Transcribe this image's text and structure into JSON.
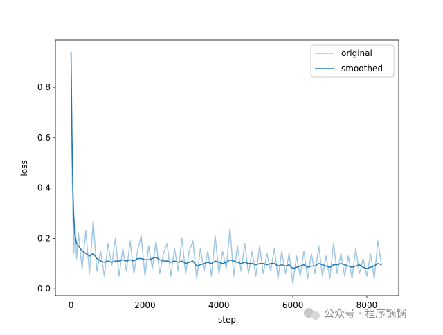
{
  "chart_data": {
    "type": "line",
    "xlabel": "step",
    "ylabel": "loss",
    "xlim": [
      -422,
      8862
    ],
    "ylim": [
      -0.027,
      0.987
    ],
    "xticks": [
      0,
      2000,
      4000,
      6000,
      8000
    ],
    "yticks": [
      {
        "value": 0,
        "label": "0.0"
      },
      {
        "value": 0.2,
        "label": "0.2"
      },
      {
        "value": 0.4,
        "label": "0.4"
      },
      {
        "value": 0.6,
        "label": "0.6"
      },
      {
        "value": 0.8,
        "label": "0.8"
      }
    ],
    "legend": "upper right",
    "x": [
      0,
      25,
      50,
      75,
      100,
      150,
      200,
      300,
      400,
      500,
      600,
      700,
      800,
      900,
      1000,
      1100,
      1200,
      1300,
      1400,
      1500,
      1600,
      1700,
      1800,
      1900,
      2000,
      2100,
      2200,
      2300,
      2400,
      2500,
      2600,
      2700,
      2800,
      2900,
      3000,
      3100,
      3200,
      3300,
      3400,
      3500,
      3600,
      3700,
      3800,
      3900,
      4000,
      4100,
      4200,
      4300,
      4400,
      4500,
      4600,
      4700,
      4800,
      4900,
      5000,
      5100,
      5200,
      5300,
      5400,
      5500,
      5600,
      5700,
      5800,
      5900,
      6000,
      6100,
      6200,
      6300,
      6400,
      6500,
      6600,
      6700,
      6800,
      6900,
      7000,
      7100,
      7200,
      7300,
      7400,
      7500,
      7600,
      7700,
      7800,
      7900,
      8000,
      8100,
      8200,
      8300,
      8400
    ],
    "series": [
      {
        "name": "original",
        "color": "#a1c7e0",
        "values": [
          0.94,
          0.52,
          0.3,
          0.14,
          0.28,
          0.12,
          0.22,
          0.08,
          0.23,
          0.06,
          0.27,
          0.07,
          0.15,
          0.05,
          0.18,
          0.09,
          0.2,
          0.05,
          0.16,
          0.07,
          0.19,
          0.06,
          0.15,
          0.21,
          0.05,
          0.17,
          0.08,
          0.19,
          0.06,
          0.14,
          0.18,
          0.05,
          0.16,
          0.07,
          0.2,
          0.06,
          0.15,
          0.19,
          0.04,
          0.16,
          0.07,
          0.15,
          0.05,
          0.21,
          0.06,
          0.15,
          0.08,
          0.24,
          0.05,
          0.17,
          0.07,
          0.18,
          0.06,
          0.15,
          0.05,
          0.17,
          0.06,
          0.14,
          0.07,
          0.16,
          0.04,
          0.15,
          0.06,
          0.14,
          0.02,
          0.13,
          0.05,
          0.15,
          0.04,
          0.14,
          0.06,
          0.17,
          0.05,
          0.13,
          0.04,
          0.18,
          0.06,
          0.14,
          0.05,
          0.13,
          0.04,
          0.16,
          0.06,
          0.12,
          0.05,
          0.14,
          0.04,
          0.19,
          0.09
        ]
      },
      {
        "name": "smoothed",
        "color": "#1f77b4",
        "values": [
          0.94,
          0.62,
          0.4,
          0.28,
          0.22,
          0.18,
          0.17,
          0.15,
          0.14,
          0.13,
          0.14,
          0.12,
          0.11,
          0.105,
          0.11,
          0.105,
          0.11,
          0.11,
          0.115,
          0.11,
          0.115,
          0.11,
          0.12,
          0.12,
          0.115,
          0.115,
          0.12,
          0.125,
          0.115,
          0.11,
          0.11,
          0.105,
          0.11,
          0.105,
          0.11,
          0.1,
          0.105,
          0.11,
          0.09,
          0.095,
          0.1,
          0.105,
          0.1,
          0.11,
          0.105,
          0.1,
          0.105,
          0.115,
          0.11,
          0.105,
          0.1,
          0.105,
          0.1,
          0.1,
          0.095,
          0.1,
          0.1,
          0.095,
          0.1,
          0.1,
          0.09,
          0.095,
          0.09,
          0.095,
          0.08,
          0.085,
          0.09,
          0.095,
          0.085,
          0.09,
          0.09,
          0.1,
          0.095,
          0.09,
          0.085,
          0.095,
          0.095,
          0.1,
          0.095,
          0.09,
          0.085,
          0.09,
          0.095,
          0.085,
          0.08,
          0.085,
          0.09,
          0.1,
          0.095
        ]
      }
    ]
  },
  "watermark": "公众号 · 程序锅锅"
}
